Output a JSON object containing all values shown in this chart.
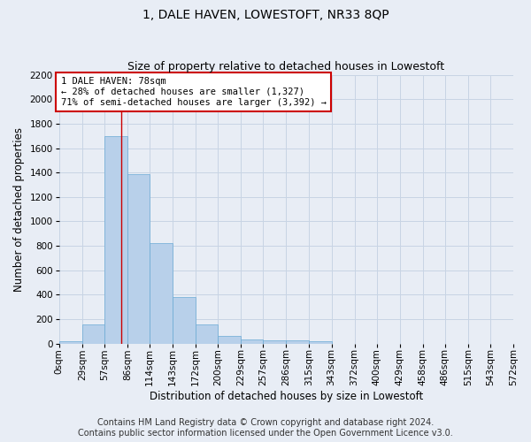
{
  "title": "1, DALE HAVEN, LOWESTOFT, NR33 8QP",
  "subtitle": "Size of property relative to detached houses in Lowestoft",
  "xlabel": "Distribution of detached houses by size in Lowestoft",
  "ylabel": "Number of detached properties",
  "footer_line1": "Contains HM Land Registry data © Crown copyright and database right 2024.",
  "footer_line2": "Contains public sector information licensed under the Open Government Licence v3.0.",
  "bar_edges": [
    0,
    29,
    57,
    86,
    114,
    143,
    172,
    200,
    229,
    257,
    286,
    315,
    343,
    372,
    400,
    429,
    458,
    486,
    515,
    543,
    572
  ],
  "bar_heights": [
    18,
    155,
    1700,
    1390,
    825,
    385,
    160,
    65,
    38,
    30,
    30,
    20,
    0,
    0,
    0,
    0,
    0,
    0,
    0,
    0
  ],
  "bar_color": "#b8d0ea",
  "bar_edgecolor": "#6aaad4",
  "bar_linewidth": 0.5,
  "grid_color": "#c8d4e4",
  "bg_color": "#e8edf5",
  "ylim": [
    0,
    2200
  ],
  "yticks": [
    0,
    200,
    400,
    600,
    800,
    1000,
    1200,
    1400,
    1600,
    1800,
    2000,
    2200
  ],
  "red_line_x": 78,
  "annotation_text": "1 DALE HAVEN: 78sqm\n← 28% of detached houses are smaller (1,327)\n71% of semi-detached houses are larger (3,392) →",
  "annotation_box_color": "white",
  "annotation_box_edge": "#cc0000",
  "red_line_color": "#cc0000",
  "title_fontsize": 10,
  "subtitle_fontsize": 9,
  "axis_label_fontsize": 8.5,
  "tick_fontsize": 7.5,
  "annotation_fontsize": 7.5,
  "footer_fontsize": 7
}
